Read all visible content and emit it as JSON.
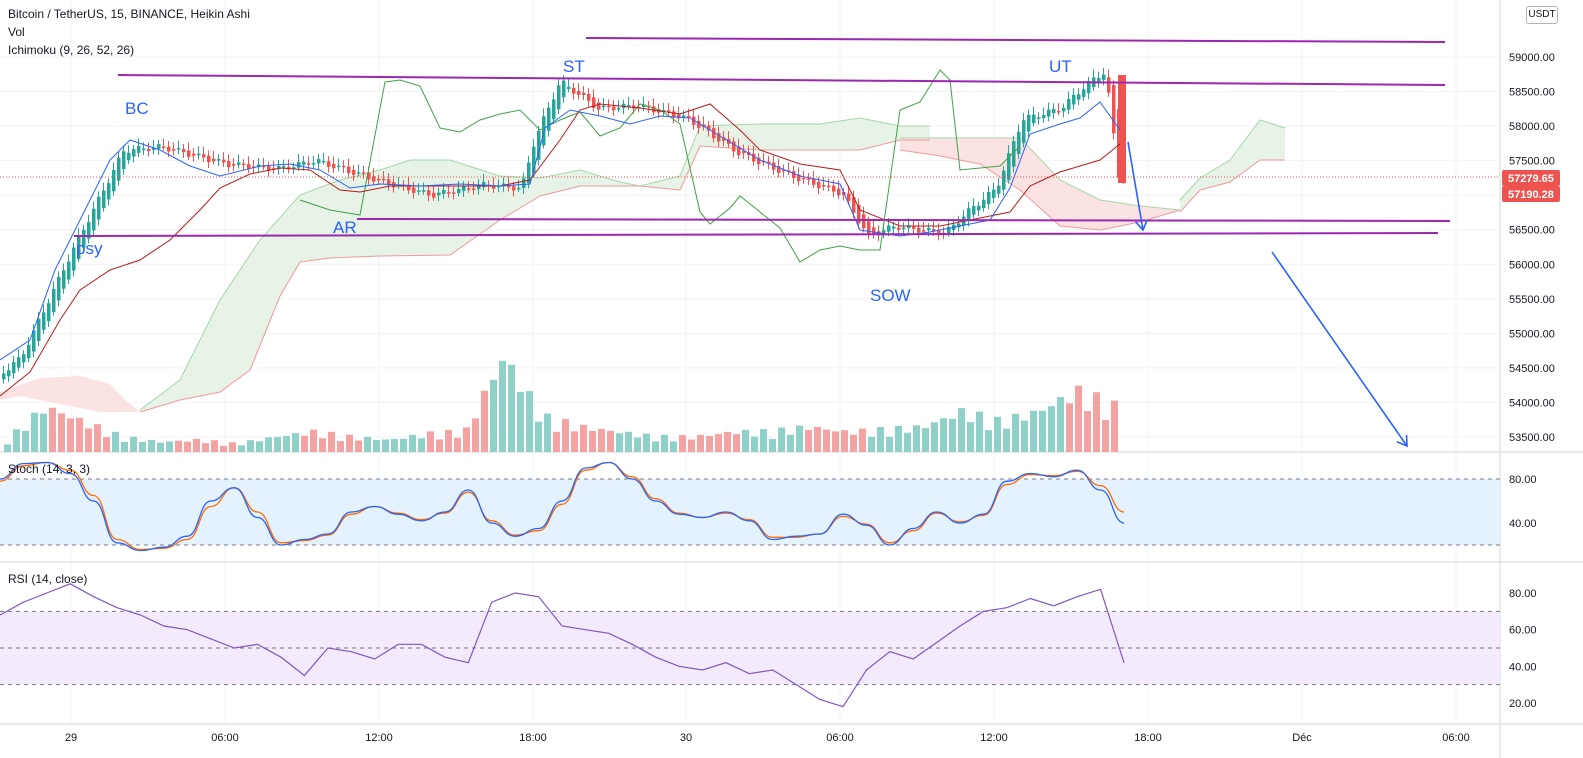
{
  "legend": {
    "symbol": "Bitcoin / TetherUS, 15, BINANCE, Heikin Ashi",
    "vol": "Vol",
    "ichimoku": "Ichimoku (9, 26, 52, 26)",
    "stoch": "Stoch (14, 3, 3)",
    "rsi": "RSI (14, close)"
  },
  "currency_button": "USDT",
  "price_badges": [
    {
      "text": "57279.65",
      "color": "#ef5350"
    },
    {
      "text": "57190.28",
      "color": "#ef5350"
    }
  ],
  "colors": {
    "up": "#26a69a",
    "down": "#ef5350",
    "vol_up": "#8fd0c9",
    "vol_down": "#f4a3a3",
    "tenkan": "#2962ff",
    "kijun": "#b71c1c",
    "chikou": "#43a047",
    "cloud_bull": "#e6f3e6",
    "cloud_bear": "#fbe3e3",
    "wyckoff_lines": "#9c27b0",
    "annotation_text": "#2962ff",
    "stoch_k": "#2962ff",
    "stoch_d": "#ff6d00",
    "stoch_band": "#e3f2fd",
    "rsi_line": "#7e57c2",
    "rsi_band": "#f3eafb"
  },
  "chart_data": [
    {
      "type": "candlestick",
      "title": "Bitcoin / TetherUS, 15, BINANCE, Heikin Ashi",
      "price_axis_ticks": [
        "59000.00",
        "58500.00",
        "58000.00",
        "57500.00",
        "57000.00",
        "56500.00",
        "56000.00",
        "55500.00",
        "55000.00",
        "54500.00",
        "54000.00",
        "53500.00"
      ],
      "ylim": [
        53300,
        59500
      ],
      "time_axis_ticks": [
        "29",
        "06:00",
        "12:00",
        "18:00",
        "30",
        "06:00",
        "12:00",
        "18:00",
        "Déc",
        "06:00"
      ],
      "last_price": 57279.65,
      "second_price": 57190.28,
      "heikin_ashi_close_path": [
        {
          "time": "28 22:00",
          "close": 54650
        },
        {
          "time": "29 00:00",
          "close": 56200
        },
        {
          "time": "29 02:00",
          "close": 57650
        },
        {
          "time": "29 03:30",
          "close": 57700
        },
        {
          "time": "29 06:00",
          "close": 57450
        },
        {
          "time": "29 08:00",
          "close": 57380
        },
        {
          "time": "29 09:30",
          "close": 57500
        },
        {
          "time": "29 11:00",
          "close": 57320
        },
        {
          "time": "29 12:00",
          "close": 57200
        },
        {
          "time": "29 14:00",
          "close": 57000
        },
        {
          "time": "29 16:00",
          "close": 57150
        },
        {
          "time": "29 17:30",
          "close": 57100
        },
        {
          "time": "29 18:00",
          "close": 57800
        },
        {
          "time": "29 19:00",
          "close": 58650
        },
        {
          "time": "29 20:30",
          "close": 58250
        },
        {
          "time": "29 22:00",
          "close": 58300
        },
        {
          "time": "30 00:00",
          "close": 58100
        },
        {
          "time": "30 02:00",
          "close": 57600
        },
        {
          "time": "30 04:00",
          "close": 57280
        },
        {
          "time": "30 06:00",
          "close": 57020
        },
        {
          "time": "30 07:00",
          "close": 56400
        },
        {
          "time": "30 08:00",
          "close": 56550
        },
        {
          "time": "30 10:00",
          "close": 56450
        },
        {
          "time": "30 11:00",
          "close": 56800
        },
        {
          "time": "30 12:00",
          "close": 57100
        },
        {
          "time": "30 13:00",
          "close": 58100
        },
        {
          "time": "30 14:30",
          "close": 58250
        },
        {
          "time": "30 15:30",
          "close": 58600
        },
        {
          "time": "30 16:15",
          "close": 58800
        },
        {
          "time": "30 16:45",
          "close": 57280
        }
      ],
      "volume_relative_path": [
        0.12,
        0.45,
        0.3,
        0.15,
        0.1,
        0.12,
        0.08,
        0.15,
        0.2,
        0.15,
        0.12,
        0.18,
        0.2,
        0.95,
        0.35,
        0.25,
        0.2,
        0.15,
        0.15,
        0.2,
        0.2,
        0.25,
        0.2,
        0.22,
        0.25,
        0.4,
        0.3,
        0.4,
        0.6,
        0.45
      ]
    },
    {
      "type": "line",
      "title": "Stoch (14, 3, 3)",
      "yticks": [
        "80.00",
        "40.00"
      ],
      "ylim": [
        0,
        100
      ],
      "series": [
        {
          "name": "%K",
          "values": [
            80,
            94,
            95,
            85,
            60,
            22,
            15,
            18,
            28,
            60,
            72,
            45,
            20,
            25,
            30,
            50,
            55,
            48,
            42,
            50,
            70,
            40,
            28,
            35,
            60,
            90,
            95,
            80,
            60,
            48,
            45,
            50,
            42,
            25,
            28,
            30,
            48,
            38,
            20,
            35,
            50,
            40,
            48,
            78,
            85,
            82,
            88,
            70,
            40
          ]
        },
        {
          "name": "%D",
          "values": [
            78,
            92,
            95,
            88,
            65,
            25,
            16,
            17,
            25,
            55,
            72,
            50,
            22,
            24,
            29,
            48,
            55,
            49,
            43,
            49,
            68,
            42,
            29,
            33,
            57,
            88,
            95,
            82,
            62,
            49,
            45,
            49,
            43,
            27,
            27,
            30,
            46,
            39,
            22,
            33,
            49,
            41,
            47,
            75,
            84,
            83,
            87,
            74,
            50
          ]
        }
      ]
    },
    {
      "type": "line",
      "title": "RSI (14, close)",
      "yticks": [
        "80.00",
        "60.00",
        "40.00",
        "20.00"
      ],
      "ylim": [
        10,
        95
      ],
      "series": [
        {
          "name": "RSI",
          "values": [
            68,
            75,
            80,
            85,
            78,
            72,
            68,
            62,
            60,
            55,
            50,
            52,
            45,
            35,
            50,
            48,
            44,
            52,
            52,
            45,
            42,
            75,
            80,
            78,
            62,
            60,
            58,
            52,
            45,
            40,
            38,
            42,
            36,
            38,
            30,
            22,
            18,
            38,
            48,
            44,
            53,
            62,
            70,
            72,
            77,
            73,
            78,
            82,
            42
          ]
        }
      ]
    }
  ],
  "annotations": {
    "labels": [
      "psy",
      "BC",
      "AR",
      "ST",
      "SOW",
      "UT"
    ]
  }
}
